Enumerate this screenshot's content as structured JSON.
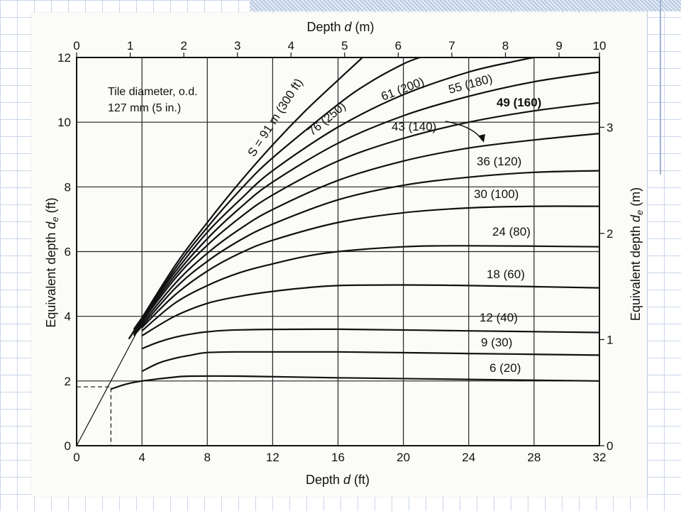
{
  "chart_data": {
    "type": "line",
    "annotation": {
      "line1": "Tile diameter, o.d.",
      "line2": "127 mm (5 in.)"
    },
    "x_bottom": {
      "label_prefix": "Depth ",
      "label_var": "d",
      "label_suffix": " (ft)",
      "range": [
        0,
        32
      ],
      "ticks": [
        "0",
        "4",
        "8",
        "12",
        "16",
        "20",
        "24",
        "28",
        "32"
      ]
    },
    "x_top": {
      "label_prefix": "Depth ",
      "label_var": "d",
      "label_suffix": " (m)",
      "range": [
        0,
        10
      ],
      "ticks": [
        "0",
        "1",
        "2",
        "3",
        "4",
        "5",
        "6",
        "7",
        "8",
        "9",
        "10"
      ]
    },
    "y_left": {
      "label_prefix": "Equivalent depth ",
      "label_var": "d",
      "label_sub": "e",
      "label_suffix": " (ft)",
      "range": [
        0,
        12
      ],
      "ticks": [
        "0",
        "2",
        "4",
        "6",
        "8",
        "10",
        "12"
      ]
    },
    "y_right": {
      "label_prefix": "Equivalent depth ",
      "label_var": "d",
      "label_sub": "e",
      "label_suffix": " (m)",
      "ticks": [
        "0",
        "1",
        "2",
        "3"
      ]
    },
    "grid": true,
    "series": [
      {
        "name": "6 (20)",
        "x": [
          2.1,
          3,
          4,
          6,
          7,
          10,
          16,
          24,
          32
        ],
        "y": [
          1.75,
          1.9,
          2.0,
          2.12,
          2.15,
          2.15,
          2.1,
          2.05,
          2.0
        ]
      },
      {
        "name": "9 (30)",
        "x": [
          4,
          5,
          6,
          7,
          8,
          10,
          16,
          24,
          32
        ],
        "y": [
          2.3,
          2.55,
          2.7,
          2.8,
          2.88,
          2.9,
          2.9,
          2.85,
          2.8
        ]
      },
      {
        "name": "12 (40)",
        "x": [
          4,
          5,
          6,
          7,
          8,
          10,
          16,
          24,
          32
        ],
        "y": [
          3.0,
          3.2,
          3.35,
          3.45,
          3.52,
          3.58,
          3.6,
          3.55,
          3.5
        ]
      },
      {
        "name": "18 (60)",
        "x": [
          4,
          6,
          8,
          10,
          12,
          14,
          16,
          20,
          24,
          32
        ],
        "y": [
          3.4,
          4.0,
          4.4,
          4.62,
          4.77,
          4.88,
          4.95,
          4.97,
          4.95,
          4.88
        ]
      },
      {
        "name": "24 (80)",
        "x": [
          4,
          6,
          8,
          10,
          12,
          14,
          16,
          20,
          24,
          32
        ],
        "y": [
          3.55,
          4.4,
          4.95,
          5.35,
          5.62,
          5.85,
          6.0,
          6.15,
          6.18,
          6.15
        ]
      },
      {
        "name": "30 (100)",
        "x": [
          4,
          6,
          8,
          10,
          12,
          16,
          20,
          24,
          28,
          32
        ],
        "y": [
          3.65,
          4.65,
          5.4,
          5.95,
          6.35,
          6.9,
          7.2,
          7.35,
          7.4,
          7.4
        ]
      },
      {
        "name": "36 (120)",
        "x": [
          3.5,
          6,
          8,
          10,
          12,
          16,
          20,
          24,
          28,
          32
        ],
        "y": [
          3.4,
          4.85,
          5.7,
          6.35,
          6.85,
          7.6,
          8.05,
          8.3,
          8.45,
          8.5
        ]
      },
      {
        "name": "43 (140)",
        "x": [
          3.5,
          6,
          8,
          10,
          12,
          16,
          20,
          24,
          28,
          32
        ],
        "y": [
          3.45,
          5.0,
          5.95,
          6.7,
          7.3,
          8.2,
          8.8,
          9.2,
          9.45,
          9.65
        ]
      },
      {
        "name": "49 (160)",
        "x": [
          3.5,
          6,
          8,
          10,
          12,
          16,
          20,
          24,
          28,
          32
        ],
        "y": [
          3.5,
          5.15,
          6.2,
          7.05,
          7.75,
          8.8,
          9.5,
          10.0,
          10.35,
          10.6
        ]
      },
      {
        "name": "55 (180)",
        "x": [
          3.5,
          6,
          8,
          10,
          12,
          16,
          20,
          24,
          28,
          32
        ],
        "y": [
          3.55,
          5.25,
          6.4,
          7.35,
          8.15,
          9.35,
          10.2,
          10.8,
          11.25,
          11.55
        ]
      },
      {
        "name": "61 (200)",
        "x": [
          3.5,
          6,
          8,
          10,
          12,
          16,
          20,
          24,
          27,
          28
        ],
        "y": [
          3.6,
          5.35,
          6.6,
          7.6,
          8.5,
          9.85,
          10.85,
          11.55,
          11.9,
          12.0
        ]
      },
      {
        "name": "76 (250)",
        "x": [
          3.2,
          6,
          8,
          10,
          12,
          16,
          18,
          20,
          21
        ],
        "y": [
          3.3,
          5.45,
          6.75,
          7.9,
          8.9,
          10.55,
          11.25,
          11.8,
          12.0
        ]
      },
      {
        "name": "S = 91 m (300 ft)",
        "x": [
          3.2,
          6,
          8,
          10,
          12,
          14,
          16,
          17.5
        ],
        "y": [
          3.3,
          5.55,
          6.9,
          8.15,
          9.3,
          10.35,
          11.3,
          12.0
        ]
      }
    ],
    "reference_line": {
      "x": [
        0,
        4.2
      ],
      "y": [
        0,
        4.0
      ]
    },
    "dashed_guide": {
      "x": 2.1,
      "y": 1.82
    }
  }
}
